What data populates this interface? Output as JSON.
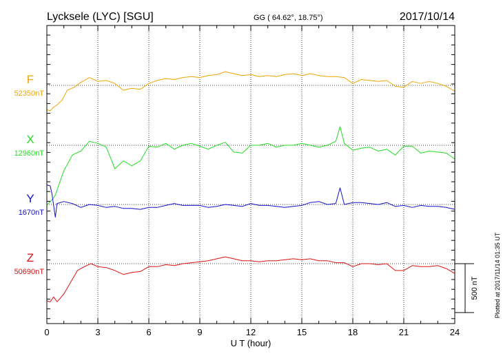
{
  "header": {
    "station": "Lycksele (LYC)  [SGU]",
    "coords": "GG ( 64.62°,  18.75°)",
    "date": "2017/10/14"
  },
  "side_note": "Plotted at 2017/11/14 01:35 UT",
  "chart_data": {
    "type": "line",
    "xlabel": "U T (hour)",
    "xlim": [
      0,
      24
    ],
    "x_ticks": [
      0,
      3,
      6,
      9,
      12,
      15,
      18,
      21,
      24
    ],
    "x_tick_labels": [
      "0",
      "3",
      "6",
      "9",
      "12",
      "15",
      "18",
      "21",
      "24"
    ],
    "scale_bar": {
      "label": "500 nT",
      "value_nT": 500
    },
    "grid": "dotted",
    "series": [
      {
        "name": "F",
        "baseline_label": "52350nT",
        "baseline_nT": 52350,
        "color": "#f0a500",
        "points": [
          [
            0,
            52100
          ],
          [
            0.2,
            52090
          ],
          [
            0.35,
            52120
          ],
          [
            0.6,
            52150
          ],
          [
            0.9,
            52200
          ],
          [
            1.2,
            52300
          ],
          [
            1.6,
            52330
          ],
          [
            2,
            52380
          ],
          [
            2.5,
            52430
          ],
          [
            3,
            52390
          ],
          [
            3.5,
            52400
          ],
          [
            4,
            52370
          ],
          [
            4.5,
            52300
          ],
          [
            5,
            52320
          ],
          [
            5.5,
            52310
          ],
          [
            6,
            52370
          ],
          [
            6.5,
            52400
          ],
          [
            7,
            52420
          ],
          [
            7.5,
            52410
          ],
          [
            8,
            52430
          ],
          [
            8.5,
            52440
          ],
          [
            9,
            52430
          ],
          [
            9.5,
            52450
          ],
          [
            10,
            52460
          ],
          [
            10.5,
            52490
          ],
          [
            11,
            52470
          ],
          [
            11.5,
            52450
          ],
          [
            12,
            52460
          ],
          [
            12.5,
            52440
          ],
          [
            13,
            52450
          ],
          [
            13.5,
            52440
          ],
          [
            14,
            52460
          ],
          [
            14.5,
            52470
          ],
          [
            15,
            52450
          ],
          [
            15.5,
            52470
          ],
          [
            16,
            52450
          ],
          [
            16.5,
            52440
          ],
          [
            17,
            52440
          ],
          [
            17.5,
            52430
          ],
          [
            18,
            52370
          ],
          [
            18.5,
            52410
          ],
          [
            19,
            52400
          ],
          [
            19.5,
            52390
          ],
          [
            20,
            52400
          ],
          [
            20.5,
            52340
          ],
          [
            21,
            52330
          ],
          [
            21.5,
            52390
          ],
          [
            22,
            52370
          ],
          [
            22.5,
            52390
          ],
          [
            23,
            52370
          ],
          [
            23.5,
            52340
          ],
          [
            24,
            52290
          ]
        ]
      },
      {
        "name": "X",
        "baseline_label": "12960nT",
        "baseline_nT": 12960,
        "color": "#22dd22",
        "points": [
          [
            0,
            12350
          ],
          [
            0.3,
            12400
          ],
          [
            0.5,
            12450
          ],
          [
            0.8,
            12600
          ],
          [
            1,
            12700
          ],
          [
            1.5,
            12860
          ],
          [
            2,
            12900
          ],
          [
            2.5,
            13000
          ],
          [
            3,
            12980
          ],
          [
            3.5,
            12940
          ],
          [
            4,
            12720
          ],
          [
            4.5,
            12800
          ],
          [
            5,
            12750
          ],
          [
            5.5,
            12800
          ],
          [
            6,
            12950
          ],
          [
            6.5,
            12940
          ],
          [
            7,
            12980
          ],
          [
            7.5,
            12920
          ],
          [
            8,
            12960
          ],
          [
            8.5,
            12980
          ],
          [
            9,
            12950
          ],
          [
            9.5,
            12920
          ],
          [
            10,
            12960
          ],
          [
            10.5,
            12990
          ],
          [
            11,
            12890
          ],
          [
            11.5,
            12880
          ],
          [
            12,
            12960
          ],
          [
            12.5,
            12960
          ],
          [
            13,
            12980
          ],
          [
            13.5,
            12940
          ],
          [
            14,
            12960
          ],
          [
            14.5,
            12960
          ],
          [
            15,
            12980
          ],
          [
            15.5,
            12960
          ],
          [
            16,
            12940
          ],
          [
            16.5,
            12960
          ],
          [
            17,
            13000
          ],
          [
            17.25,
            13150
          ],
          [
            17.5,
            12980
          ],
          [
            18,
            12910
          ],
          [
            18.5,
            12930
          ],
          [
            19,
            12940
          ],
          [
            19.5,
            12900
          ],
          [
            20,
            12920
          ],
          [
            20.5,
            12860
          ],
          [
            21,
            12950
          ],
          [
            21.5,
            12950
          ],
          [
            22,
            12880
          ],
          [
            22.5,
            12900
          ],
          [
            23,
            12890
          ],
          [
            23.5,
            12880
          ],
          [
            24,
            12820
          ]
        ]
      },
      {
        "name": "Y",
        "baseline_label": "1670nT",
        "baseline_nT": 1670,
        "color": "#1111cc",
        "points": [
          [
            0,
            1870
          ],
          [
            0.2,
            1860
          ],
          [
            0.3,
            1780
          ],
          [
            0.5,
            1540
          ],
          [
            0.6,
            1680
          ],
          [
            1,
            1700
          ],
          [
            1.5,
            1680
          ],
          [
            2,
            1640
          ],
          [
            2.5,
            1670
          ],
          [
            3,
            1660
          ],
          [
            3.5,
            1640
          ],
          [
            4,
            1650
          ],
          [
            4.5,
            1630
          ],
          [
            5,
            1630
          ],
          [
            5.5,
            1620
          ],
          [
            6,
            1640
          ],
          [
            6.5,
            1640
          ],
          [
            7,
            1660
          ],
          [
            7.5,
            1680
          ],
          [
            8,
            1660
          ],
          [
            8.5,
            1660
          ],
          [
            9,
            1660
          ],
          [
            9.5,
            1640
          ],
          [
            10,
            1650
          ],
          [
            10.5,
            1670
          ],
          [
            11,
            1660
          ],
          [
            11.5,
            1650
          ],
          [
            12,
            1680
          ],
          [
            12.5,
            1660
          ],
          [
            13,
            1660
          ],
          [
            13.5,
            1650
          ],
          [
            14,
            1640
          ],
          [
            14.5,
            1650
          ],
          [
            15,
            1660
          ],
          [
            15.5,
            1690
          ],
          [
            16,
            1700
          ],
          [
            16.5,
            1670
          ],
          [
            17,
            1680
          ],
          [
            17.25,
            1840
          ],
          [
            17.5,
            1670
          ],
          [
            18,
            1690
          ],
          [
            18.5,
            1690
          ],
          [
            19,
            1680
          ],
          [
            19.5,
            1670
          ],
          [
            20,
            1690
          ],
          [
            20.5,
            1650
          ],
          [
            21,
            1660
          ],
          [
            21.5,
            1640
          ],
          [
            22,
            1660
          ],
          [
            22.5,
            1650
          ],
          [
            23,
            1650
          ],
          [
            23.5,
            1640
          ],
          [
            24,
            1620
          ]
        ]
      },
      {
        "name": "Z",
        "baseline_label": "50690nT",
        "baseline_nT": 50690,
        "color": "#dd1111",
        "points": [
          [
            0,
            50310
          ],
          [
            0.2,
            50300
          ],
          [
            0.4,
            50350
          ],
          [
            0.6,
            50300
          ],
          [
            1,
            50380
          ],
          [
            1.4,
            50500
          ],
          [
            1.8,
            50620
          ],
          [
            2.2,
            50660
          ],
          [
            2.6,
            50690
          ],
          [
            3,
            50660
          ],
          [
            3.5,
            50650
          ],
          [
            4,
            50620
          ],
          [
            4.5,
            50580
          ],
          [
            5,
            50600
          ],
          [
            5.5,
            50610
          ],
          [
            6,
            50660
          ],
          [
            6.5,
            50660
          ],
          [
            7,
            50680
          ],
          [
            7.5,
            50670
          ],
          [
            8,
            50690
          ],
          [
            8.5,
            50700
          ],
          [
            9,
            50710
          ],
          [
            9.5,
            50720
          ],
          [
            10,
            50740
          ],
          [
            10.5,
            50760
          ],
          [
            11,
            50740
          ],
          [
            11.5,
            50720
          ],
          [
            12,
            50720
          ],
          [
            12.5,
            50710
          ],
          [
            13,
            50720
          ],
          [
            13.5,
            50720
          ],
          [
            14,
            50730
          ],
          [
            14.5,
            50740
          ],
          [
            15,
            50730
          ],
          [
            15.5,
            50740
          ],
          [
            16,
            50720
          ],
          [
            16.5,
            50720
          ],
          [
            17,
            50700
          ],
          [
            17.5,
            50700
          ],
          [
            18,
            50660
          ],
          [
            18.5,
            50690
          ],
          [
            19,
            50690
          ],
          [
            19.5,
            50680
          ],
          [
            20,
            50690
          ],
          [
            20.5,
            50620
          ],
          [
            21,
            50620
          ],
          [
            21.5,
            50670
          ],
          [
            22,
            50660
          ],
          [
            22.5,
            50660
          ],
          [
            23,
            50670
          ],
          [
            23.5,
            50640
          ],
          [
            24,
            50590
          ]
        ]
      }
    ]
  }
}
